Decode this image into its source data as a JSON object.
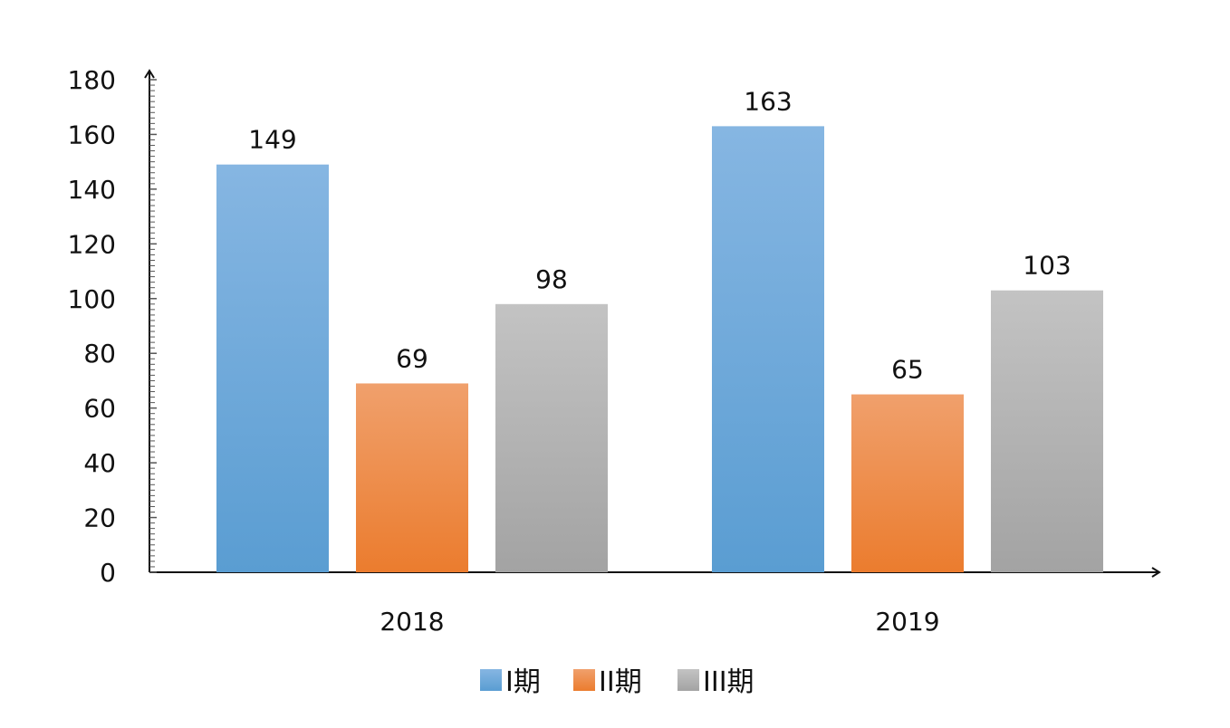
{
  "chart_data": {
    "type": "bar",
    "categories": [
      "2018",
      "2019"
    ],
    "series": [
      {
        "name": "I期",
        "values": [
          149,
          163
        ],
        "color": "#5b9bd5"
      },
      {
        "name": "II期",
        "values": [
          69,
          65
        ],
        "color": "#ed7d31"
      },
      {
        "name": "III期",
        "values": [
          98,
          103
        ],
        "color": "#a5a5a5"
      }
    ],
    "yticks": [
      "0",
      "20",
      "40",
      "60",
      "80",
      "100",
      "120",
      "140",
      "160",
      "180"
    ],
    "ylim": [
      0,
      180
    ],
    "title": "",
    "xlabel": "",
    "ylabel": "",
    "grid": false,
    "legend_position": "bottom",
    "data_labels": true
  }
}
